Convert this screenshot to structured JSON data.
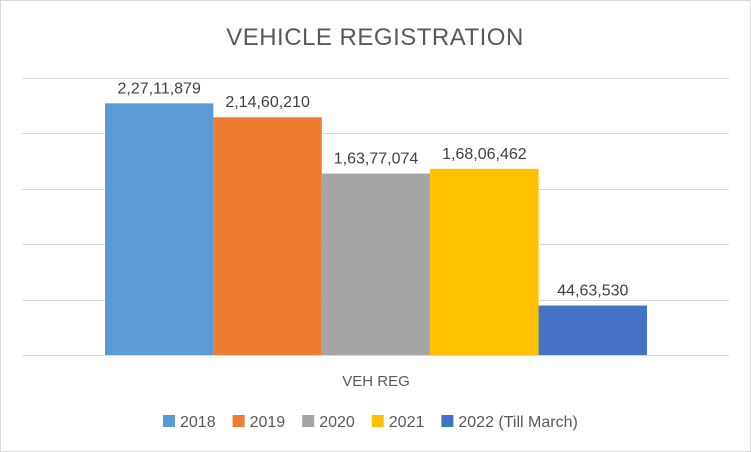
{
  "chart_data": {
    "type": "bar",
    "title": "VEHICLE REGISTRATION",
    "categories": [
      "VEH REG"
    ],
    "series": [
      {
        "name": "2018",
        "values": [
          22711879
        ],
        "label": "2,27,11,879",
        "color": "#5b9bd5"
      },
      {
        "name": "2019",
        "values": [
          21460210
        ],
        "label": "2,14,60,210",
        "color": "#ed7d31"
      },
      {
        "name": "2020",
        "values": [
          16377074
        ],
        "label": "1,63,77,074",
        "color": "#a5a5a5"
      },
      {
        "name": "2021",
        "values": [
          16806462
        ],
        "label": "1,68,06,462",
        "color": "#ffc000"
      },
      {
        "name": "2022 (Till March)",
        "values": [
          4463530
        ],
        "label": "44,63,530",
        "color": "#4472c4"
      }
    ],
    "ylim": [
      0,
      25000000
    ],
    "y_gridline_step": 5000000,
    "y_axis_labels_shown": false,
    "grid": true,
    "legend": "bottom"
  }
}
